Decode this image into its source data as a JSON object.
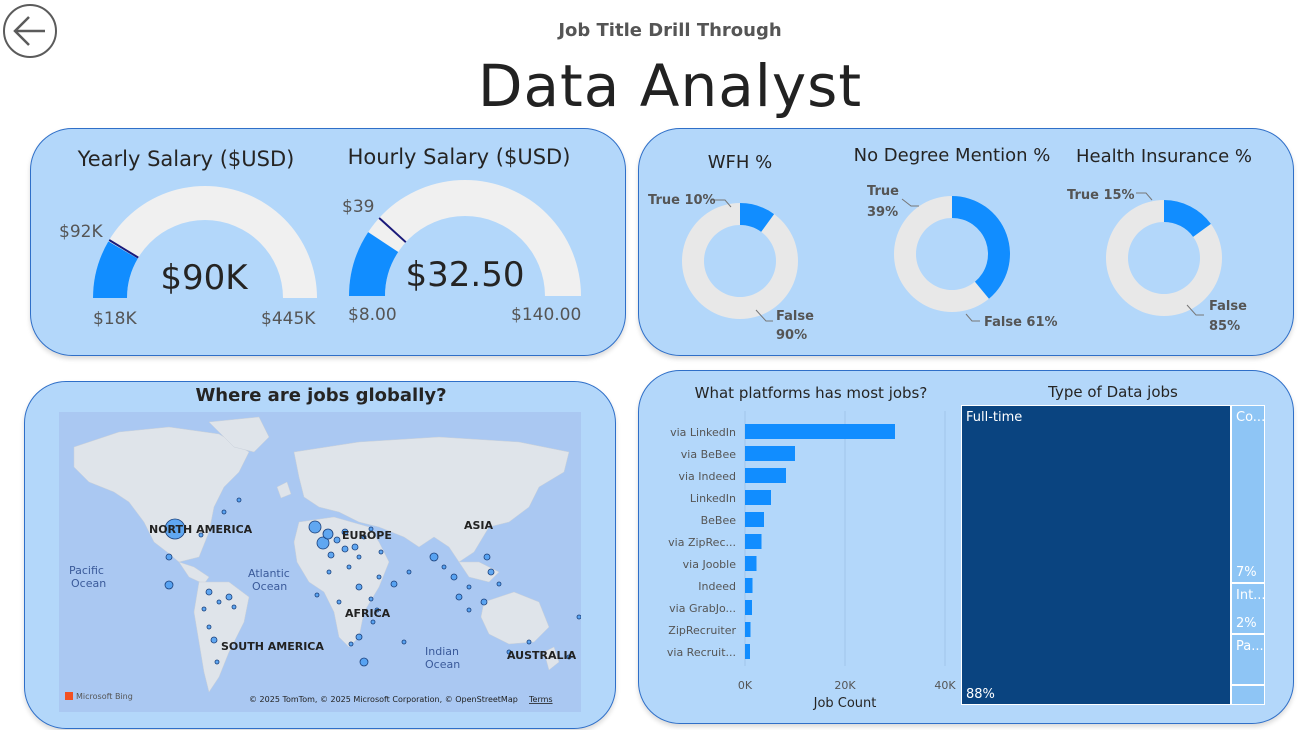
{
  "header": {
    "back_label": "Back",
    "subtitle": "Job Title Drill Through",
    "title": "Data Analyst"
  },
  "colors": {
    "accent": "#118dff",
    "track": "#f0f0f0",
    "card_bg": "#b3d7fa",
    "card_border": "#2f6fc8",
    "treemap_dark": "#0a4480",
    "treemap_light": "#8ec5f5",
    "target_line": "#1a1a7a"
  },
  "yearly_gauge": {
    "title": "Yearly Salary ($USD)",
    "value_label": "$90K",
    "min_label": "$18K",
    "max_label": "$445K",
    "target_label": "$92K",
    "min": 18000,
    "max": 445000,
    "value": 90000,
    "target": 92000
  },
  "hourly_gauge": {
    "title": "Hourly Salary ($USD)",
    "value_label": "$32.50",
    "min_label": "$8.00",
    "max_label": "$140.00",
    "target_label": "$39",
    "min": 8,
    "max": 140,
    "value": 32.5,
    "target": 39
  },
  "wfh": {
    "title": "WFH %",
    "true_label": "True 10%",
    "false_label_1": "False",
    "false_label_2": "90%",
    "true_pct": 10
  },
  "no_degree": {
    "title": "No Degree Mention %",
    "true_label_1": "True",
    "true_label_2": "39%",
    "false_label": "False 61%",
    "true_pct": 39
  },
  "health": {
    "title": "Health Insurance %",
    "true_label": "True 15%",
    "false_label_1": "False",
    "false_label_2": "85%",
    "true_pct": 15
  },
  "map": {
    "title": "Where are jobs globally?",
    "regions": {
      "north_america": "NORTH AMERICA",
      "europe": "EUROPE",
      "asia": "ASIA",
      "africa": "AFRICA",
      "south_america": "SOUTH AMERICA",
      "australia": "AUSTRALIA",
      "pacific_1": "Pacific",
      "pacific_2": "Ocean",
      "atlantic_1": "Atlantic",
      "atlantic_2": "Ocean",
      "indian_1": "Indian",
      "indian_2": "Ocean"
    },
    "attribution": "© 2025 TomTom, © 2025 Microsoft Corporation, © OpenStreetMap",
    "terms": "Terms",
    "bing_logo": "Microsoft Bing"
  },
  "chart_data": [
    {
      "type": "bar",
      "orientation": "horizontal",
      "title": "What platforms has most jobs?",
      "xlabel": "Job Count",
      "categories": [
        "via LinkedIn",
        "via BeBee",
        "via Indeed",
        "LinkedIn",
        "BeBee",
        "via ZipRec...",
        "via Jooble",
        "Indeed",
        "via GrabJo...",
        "ZipRecruiter",
        "via Recruit..."
      ],
      "values": [
        30000,
        10000,
        8200,
        5200,
        3800,
        3300,
        2300,
        1500,
        1400,
        1100,
        1000
      ],
      "xlim": [
        0,
        40000
      ],
      "xticks": [
        0,
        20000,
        40000
      ],
      "xtick_labels": [
        "0K",
        "20K",
        "40K"
      ],
      "color": "#118dff"
    },
    {
      "type": "treemap",
      "title": "Type of Data jobs",
      "items": [
        {
          "label": "Full-time",
          "value_label": "88%",
          "value": 88
        },
        {
          "label": "Co...",
          "value_label": "7%",
          "value": 7
        },
        {
          "label": "Int...",
          "value_label": "2%",
          "value": 2
        },
        {
          "label": "Pa...",
          "value_label": "",
          "value": 2
        }
      ]
    }
  ]
}
